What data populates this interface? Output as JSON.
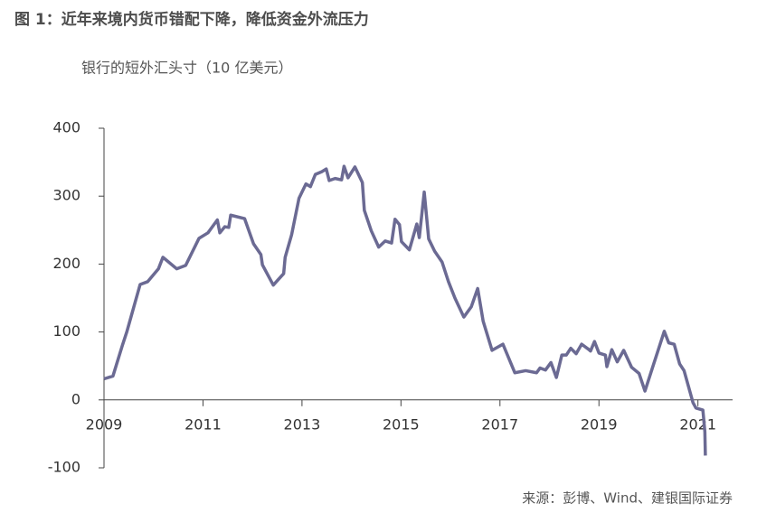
{
  "chart_data": {
    "type": "line",
    "title": "图 1：近年来境内货币错配下降，降低资金外流压力",
    "subtitle": "银行的短外汇头寸（10 亿美元）",
    "source": "来源：彭博、Wind、建银国际证券",
    "x": [
      2009.0,
      2009.18,
      2009.37,
      2009.46,
      2009.73,
      2009.88,
      2010.1,
      2010.19,
      2010.47,
      2010.65,
      2010.92,
      2011.1,
      2011.29,
      2011.34,
      2011.44,
      2011.52,
      2011.56,
      2011.84,
      2012.02,
      2012.17,
      2012.2,
      2012.42,
      2012.63,
      2012.66,
      2012.79,
      2012.94,
      2013.08,
      2013.17,
      2013.27,
      2013.4,
      2013.49,
      2013.55,
      2013.67,
      2013.8,
      2013.85,
      2013.93,
      2014.07,
      2014.22,
      2014.26,
      2014.4,
      2014.55,
      2014.68,
      2014.81,
      2014.88,
      2014.97,
      2015.01,
      2015.17,
      2015.32,
      2015.37,
      2015.47,
      2015.56,
      2015.68,
      2015.83,
      2015.96,
      2016.09,
      2016.27,
      2016.42,
      2016.55,
      2016.66,
      2016.84,
      2017.06,
      2017.3,
      2017.52,
      2017.74,
      2017.81,
      2017.92,
      2018.03,
      2018.14,
      2018.25,
      2018.34,
      2018.43,
      2018.54,
      2018.65,
      2018.8,
      2018.83,
      2018.91,
      2019.0,
      2019.13,
      2019.16,
      2019.26,
      2019.37,
      2019.5,
      2019.66,
      2019.81,
      2019.93,
      2020.08,
      2020.32,
      2020.41,
      2020.52,
      2020.63,
      2020.72,
      2020.9,
      2020.96,
      2021.1,
      2021.14,
      2021.15
    ],
    "series": [
      {
        "color": "#6b6a93",
        "values": [
          31,
          35,
          80,
          100,
          170,
          174,
          193,
          210,
          193,
          198,
          238,
          246,
          265,
          246,
          255,
          254,
          272,
          267,
          230,
          214,
          199,
          169,
          186,
          210,
          243,
          297,
          318,
          314,
          332,
          336,
          340,
          323,
          326,
          324,
          344,
          327,
          343,
          320,
          279,
          249,
          225,
          234,
          231,
          266,
          258,
          233,
          221,
          259,
          239,
          306,
          237,
          219,
          203,
          174,
          150,
          122,
          137,
          164,
          116,
          73,
          82,
          40,
          43,
          40,
          47,
          44,
          55,
          33,
          66,
          66,
          76,
          68,
          82,
          74,
          72,
          86,
          69,
          66,
          49,
          74,
          56,
          73,
          48,
          39,
          13,
          47,
          101,
          84,
          82,
          53,
          43,
          -4,
          -12,
          -15,
          -47,
          -82
        ]
      }
    ],
    "xlim": [
      2009,
      2021.7
    ],
    "xticks": [
      2009,
      2011,
      2013,
      2015,
      2017,
      2019,
      2021
    ],
    "ylim": [
      -100,
      400
    ],
    "yticks": [
      -100,
      0,
      100,
      200,
      300,
      400
    ]
  }
}
